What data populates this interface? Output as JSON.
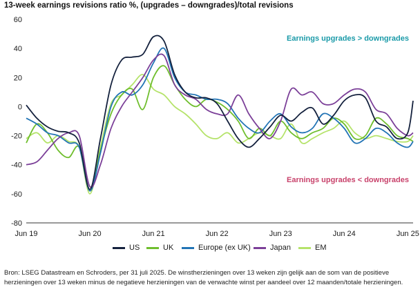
{
  "chart_data": {
    "type": "line",
    "title": "13-week earnings revisions ratio %, (upgrades – downgrades)/total revisions",
    "xlabel": "",
    "ylabel": "",
    "ylim": [
      -80,
      60
    ],
    "yticks": [
      60,
      40,
      20,
      0,
      -20,
      -40,
      -60,
      -80
    ],
    "xlim": [
      "2019-06",
      "2025-07"
    ],
    "xtick_labels": [
      "Jun 19",
      "Jun 20",
      "Jun 21",
      "Jun 22",
      "Jun 23",
      "Jun 24",
      "Jun 25"
    ],
    "grid": false,
    "legend_position": "bottom",
    "annotations": [
      {
        "text": "Earnings upgrades > downgrades",
        "color": "#1a9aa8",
        "position": "top-right"
      },
      {
        "text": "Earnings upgrades < downgrades",
        "color": "#c8426b",
        "position": "bottom-right"
      }
    ],
    "colors": {
      "US": "#14213d",
      "UK": "#6fbe2d",
      "Europe (ex UK)": "#2274b5",
      "Japan": "#7b3f98",
      "EM": "#b5e36a"
    },
    "x": [
      "2019-06",
      "2019-08",
      "2019-10",
      "2019-12",
      "2020-02",
      "2020-04",
      "2020-06",
      "2020-08",
      "2020-10",
      "2020-12",
      "2021-02",
      "2021-04",
      "2021-06",
      "2021-08",
      "2021-10",
      "2021-12",
      "2022-02",
      "2022-04",
      "2022-06",
      "2022-08",
      "2022-10",
      "2022-12",
      "2023-02",
      "2023-04",
      "2023-06",
      "2023-08",
      "2023-10",
      "2023-12",
      "2024-02",
      "2024-04",
      "2024-06",
      "2024-08",
      "2024-10",
      "2024-12",
      "2025-02",
      "2025-04",
      "2025-06",
      "2025-07"
    ],
    "series": [
      {
        "name": "US",
        "values": [
          1,
          -8,
          -14,
          -17,
          -18,
          -25,
          -57,
          -22,
          15,
          32,
          34,
          36,
          48,
          45,
          22,
          10,
          6,
          6,
          2,
          -10,
          -22,
          -28,
          -22,
          -14,
          -6,
          -10,
          -4,
          -1,
          -12,
          -6,
          4,
          8,
          6,
          -10,
          -14,
          -22,
          -18,
          4
        ]
      },
      {
        "name": "UK",
        "values": [
          -25,
          -12,
          -18,
          -30,
          -35,
          -28,
          -58,
          -30,
          -5,
          8,
          12,
          -2,
          20,
          28,
          15,
          5,
          0,
          5,
          3,
          -2,
          -10,
          -22,
          -15,
          -20,
          -10,
          -18,
          -22,
          -18,
          -15,
          -8,
          -12,
          -22,
          -20,
          -8,
          -12,
          -20,
          -22,
          -24
        ]
      },
      {
        "name": "Europe (ex UK)",
        "values": [
          -8,
          -12,
          -18,
          -20,
          -25,
          -28,
          -58,
          -32,
          0,
          10,
          8,
          15,
          30,
          40,
          20,
          10,
          8,
          5,
          5,
          2,
          -8,
          -15,
          -18,
          -10,
          -5,
          -14,
          -18,
          -15,
          -5,
          -8,
          -15,
          -25,
          -22,
          -15,
          -18,
          -25,
          -28,
          -24
        ]
      },
      {
        "name": "Japan",
        "values": [
          -40,
          -38,
          -30,
          -22,
          -18,
          -20,
          -55,
          -40,
          -15,
          0,
          10,
          20,
          32,
          35,
          15,
          8,
          5,
          -2,
          -5,
          -5,
          8,
          -5,
          -15,
          -22,
          -10,
          12,
          8,
          10,
          2,
          2,
          8,
          12,
          10,
          -2,
          -5,
          -15,
          -20,
          -18
        ]
      },
      {
        "name": "EM",
        "values": [
          -22,
          -18,
          -25,
          -20,
          -24,
          -28,
          -60,
          -28,
          2,
          8,
          15,
          22,
          12,
          8,
          0,
          -5,
          -12,
          -20,
          -22,
          -18,
          -25,
          -22,
          -18,
          -20,
          -22,
          -12,
          -25,
          -22,
          -18,
          -15,
          -10,
          -18,
          -22,
          -20,
          -22,
          -24,
          -24,
          -20
        ]
      }
    ]
  },
  "legend": [
    "US",
    "UK",
    "Europe (ex UK)",
    "Japan",
    "EM"
  ],
  "source_note": "Bron: LSEG Datastream en Schroders, per 31 juli 2025. De winstherzieningen over 13 weken zijn gelijk aan de som van de positieve herzieningen over 13 weken minus de negatieve herzieningen van de verwachte winst per aandeel over 12 maanden/totale herzieningen."
}
